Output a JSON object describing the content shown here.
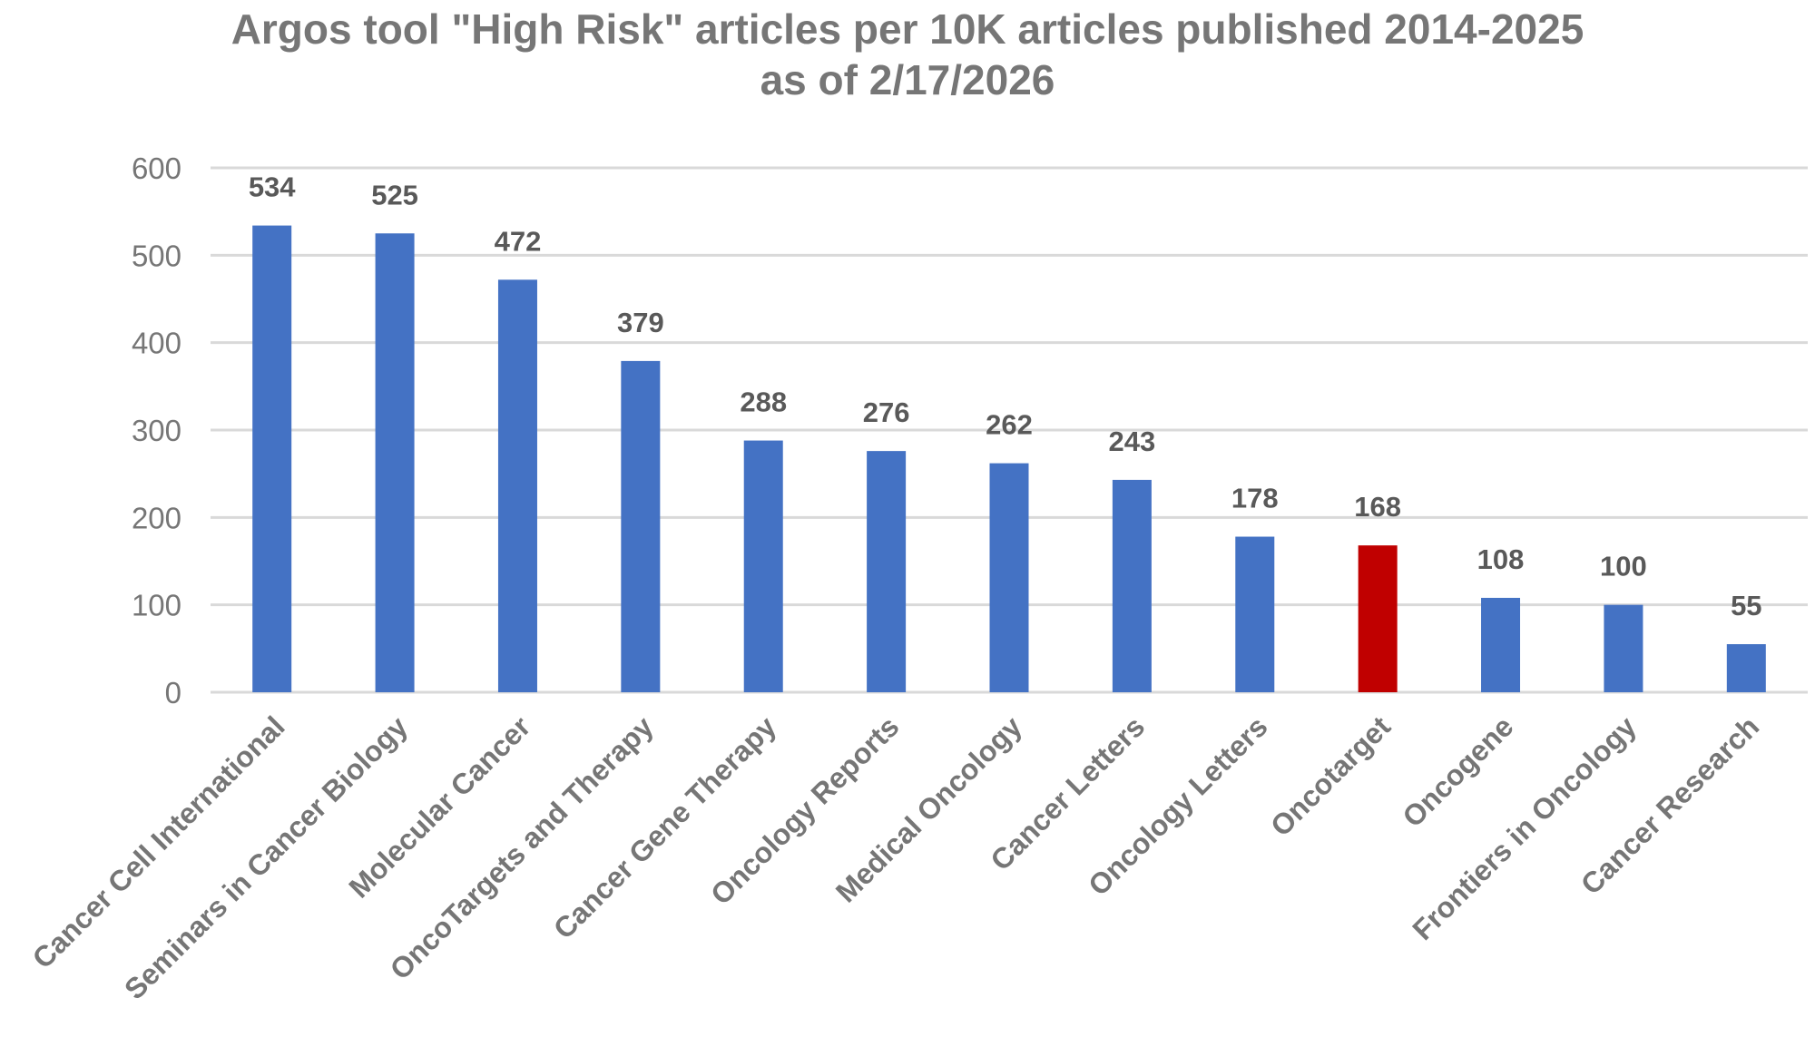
{
  "chart_data": {
    "type": "bar",
    "title": "Argos tool \"High Risk\" articles per 10K articles published 2014-2025",
    "subtitle": "as of 2/17/2026",
    "xlabel": "",
    "ylabel": "",
    "ylim": [
      0,
      600
    ],
    "yticks": [
      0,
      100,
      200,
      300,
      400,
      500,
      600
    ],
    "grid": true,
    "legend": "none",
    "categories": [
      "Cancer Cell International",
      "Seminars in Cancer Biology",
      "Molecular Cancer",
      "OncoTargets and Therapy",
      "Cancer Gene Therapy",
      "Oncology Reports",
      "Medical Oncology",
      "Cancer Letters",
      "Oncology Letters",
      "Oncotarget",
      "Oncogene",
      "Frontiers in Oncology",
      "Cancer Research"
    ],
    "values": [
      534,
      525,
      472,
      379,
      288,
      276,
      262,
      243,
      178,
      168,
      108,
      100,
      55
    ],
    "colors": {
      "default": "#4472c4",
      "highlight": "#c00000",
      "highlight_category": "Oncotarget",
      "text": "#767676",
      "label": "#595959",
      "grid": "#d9d9d9"
    }
  }
}
